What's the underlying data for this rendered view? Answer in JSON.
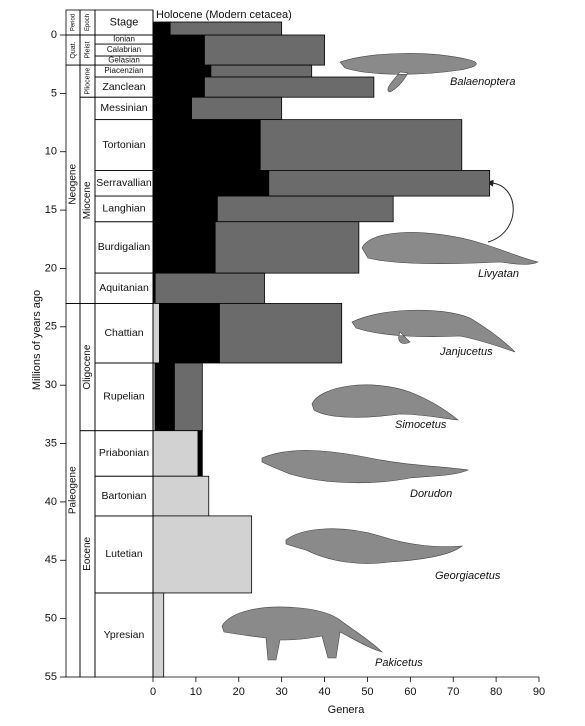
{
  "chart_data": {
    "type": "bar",
    "ylabel": "Millions of years ago",
    "xlabel": "Genera",
    "xlim": [
      0,
      90
    ],
    "xticks": [
      0,
      10,
      20,
      30,
      40,
      50,
      60,
      70,
      80,
      90
    ],
    "ylim": [
      0,
      55
    ],
    "yticks": [
      0,
      5,
      10,
      15,
      20,
      25,
      30,
      35,
      40,
      45,
      50,
      55
    ],
    "timescale": {
      "headers": [
        "Period",
        "Epoch",
        "Stage"
      ],
      "periods": [
        {
          "name": "Quat.",
          "start": 0,
          "end": 2.58
        },
        {
          "name": "Neogene",
          "start": 2.58,
          "end": 23
        },
        {
          "name": "Paleogene",
          "start": 23,
          "end": 55
        }
      ],
      "epochs": [
        {
          "name": "Pleist",
          "start": 0,
          "end": 2.58
        },
        {
          "name": "Pliocene",
          "start": 2.58,
          "end": 5.33
        },
        {
          "name": "Miocene",
          "start": 5.33,
          "end": 23
        },
        {
          "name": "Oligocene",
          "start": 23,
          "end": 33.9
        },
        {
          "name": "Eocene",
          "start": 33.9,
          "end": 55
        }
      ],
      "stages": [
        {
          "name": "Ionian",
          "start": 0,
          "end": 0.78
        },
        {
          "name": "Calabrian",
          "start": 0.78,
          "end": 1.8
        },
        {
          "name": "Gelasian",
          "start": 1.8,
          "end": 2.58
        },
        {
          "name": "Piacenzian",
          "start": 2.58,
          "end": 3.6
        },
        {
          "name": "Zanclean",
          "start": 3.6,
          "end": 5.33
        },
        {
          "name": "Messinian",
          "start": 5.33,
          "end": 7.25
        },
        {
          "name": "Tortonian",
          "start": 7.25,
          "end": 11.6
        },
        {
          "name": "Serravallian",
          "start": 11.6,
          "end": 13.8
        },
        {
          "name": "Langhian",
          "start": 13.8,
          "end": 16
        },
        {
          "name": "Burdigalian",
          "start": 16,
          "end": 20.4
        },
        {
          "name": "Aquitanian",
          "start": 20.4,
          "end": 23
        },
        {
          "name": "Chattian",
          "start": 23,
          "end": 28.1
        },
        {
          "name": "Rupelian",
          "start": 28.1,
          "end": 33.9
        },
        {
          "name": "Priabonian",
          "start": 33.9,
          "end": 37.8
        },
        {
          "name": "Bartonian",
          "start": 37.8,
          "end": 41.2
        },
        {
          "name": "Lutetian",
          "start": 41.2,
          "end": 47.8
        },
        {
          "name": "Ypresian",
          "start": 47.8,
          "end": 55
        }
      ]
    },
    "intervals": [
      [
        0,
        2.58
      ],
      [
        2.58,
        3.6
      ],
      [
        3.6,
        5.33
      ],
      [
        5.33,
        7.25
      ],
      [
        7.25,
        11.6
      ],
      [
        11.6,
        13.8
      ],
      [
        13.8,
        16
      ],
      [
        16,
        20.4
      ],
      [
        20.4,
        23
      ],
      [
        23,
        28.1
      ],
      [
        28.1,
        33.9
      ],
      [
        33.9,
        37.8
      ],
      [
        37.8,
        41.2
      ],
      [
        41.2,
        47.8
      ],
      [
        47.8,
        55
      ]
    ],
    "series": [
      {
        "color": "#d2d2d2",
        "values": [
          0,
          0,
          0,
          0,
          0,
          0,
          0,
          0,
          0,
          1.5,
          0.5,
          10.5,
          13,
          23,
          2.5
        ]
      },
      {
        "color": "#000000",
        "values": [
          12,
          13.5,
          12,
          9,
          25,
          27,
          15,
          14.5,
          0.5,
          14,
          4.5,
          1,
          0,
          0,
          0
        ]
      },
      {
        "color": "#6b6b6b",
        "values": [
          28,
          23.5,
          39.5,
          21,
          47,
          51.5,
          41,
          33.5,
          25.5,
          28.5,
          6.5,
          0,
          0,
          0,
          0
        ]
      }
    ],
    "holocene": {
      "label": "Holocene (Modern cetacea)",
      "values": [
        0,
        4,
        26
      ]
    },
    "annotations": [
      "Balaenoptera",
      "Livyatan",
      "Janjucetus",
      "Simocetus",
      "Dorudon",
      "Georgiacetus",
      "Pakicetus"
    ]
  }
}
